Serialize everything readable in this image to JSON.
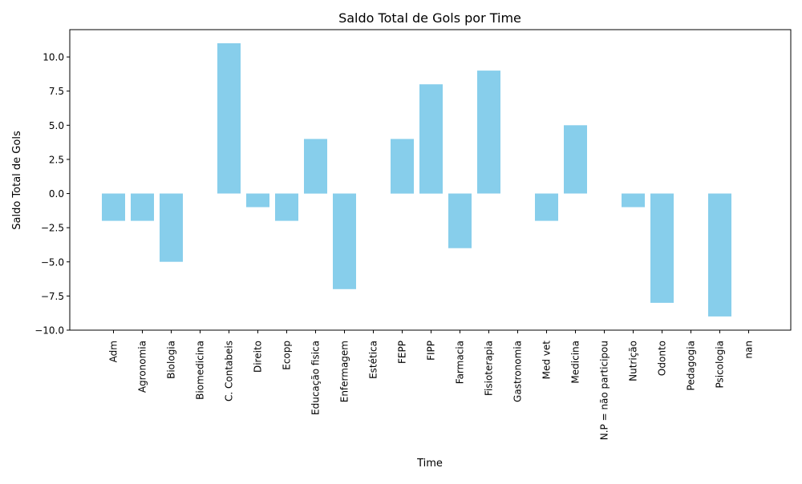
{
  "chart_data": {
    "type": "bar",
    "title": "Saldo Total de Gols por Time",
    "xlabel": "Time",
    "ylabel": "Saldo Total de Gols",
    "ylim": [
      -10,
      12
    ],
    "yticks": [
      -10.0,
      -7.5,
      -5.0,
      -2.5,
      0.0,
      2.5,
      5.0,
      7.5,
      10.0
    ],
    "ytick_labels": [
      "−10.0",
      "−7.5",
      "−5.0",
      "−2.5",
      "0.0",
      "2.5",
      "5.0",
      "7.5",
      "10.0"
    ],
    "categories": [
      "Adm",
      "Agronomia",
      "Biologia",
      "Biomedicina",
      "C. Contabeis",
      "Direito",
      "Ecopp",
      "Educação fisica",
      "Enfermagem",
      "Estética",
      "FEPP",
      "FIPP",
      "Farmacia",
      "Fisioterapia",
      "Gastronomia",
      "Med vet",
      "Medicina",
      "N.P = não participou",
      "Nutrição",
      "Odonto",
      "Pedagogia",
      "Psicologia",
      "nan"
    ],
    "values": [
      -2,
      -2,
      -5,
      0,
      11,
      -1,
      -2,
      4,
      -7,
      0,
      4,
      8,
      -4,
      9,
      0,
      -2,
      5,
      0,
      -1,
      -8,
      0,
      -9,
      0
    ],
    "bar_color": "#87ceeb",
    "grid": false
  }
}
